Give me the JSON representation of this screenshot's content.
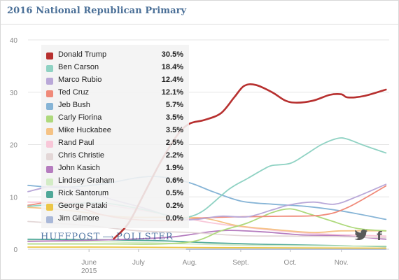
{
  "title": "2016 National Republican Primary",
  "brand": {
    "left": "HUFFPOST",
    "right": "POLLSTER",
    "sep_icon": "arrow-icon"
  },
  "share": {
    "twitter_icon": "twitter-bird-icon",
    "facebook_icon": "facebook-f-icon"
  },
  "chart_data": {
    "type": "line",
    "title": "2016 National Republican Primary",
    "xlabel": "",
    "ylabel": "",
    "ylim": [
      0,
      40
    ],
    "xlim": [
      "2015-04-25",
      "2015-11-30"
    ],
    "y_ticks": [
      "0",
      "10",
      "20",
      "30",
      "40"
    ],
    "x_ticks": [
      {
        "date": "2015-06-01",
        "label": "June",
        "sub": "2015"
      },
      {
        "date": "2015-07-01",
        "label": "July",
        "sub": ""
      },
      {
        "date": "2015-08-01",
        "label": "Aug.",
        "sub": ""
      },
      {
        "date": "2015-09-01",
        "label": "Sept.",
        "sub": ""
      },
      {
        "date": "2015-10-01",
        "label": "Oct.",
        "sub": ""
      },
      {
        "date": "2015-11-01",
        "label": "Nov.",
        "sub": ""
      }
    ],
    "grid": "horizontal",
    "legend_position": "top-left",
    "series": [
      {
        "name": "Donald Trump",
        "value_label": "30.5%",
        "color": "#b7302f",
        "points": [
          [
            "2015-06-16",
            2
          ],
          [
            "2015-06-25",
            5
          ],
          [
            "2015-07-05",
            11
          ],
          [
            "2015-07-15",
            17
          ],
          [
            "2015-07-25",
            22
          ],
          [
            "2015-08-01",
            24
          ],
          [
            "2015-08-10",
            24.7
          ],
          [
            "2015-08-20",
            26
          ],
          [
            "2015-08-28",
            29
          ],
          [
            "2015-09-03",
            31.2
          ],
          [
            "2015-09-10",
            31.4
          ],
          [
            "2015-09-20",
            30
          ],
          [
            "2015-09-28",
            28.4
          ],
          [
            "2015-10-05",
            28
          ],
          [
            "2015-10-15",
            28.4
          ],
          [
            "2015-10-25",
            29.5
          ],
          [
            "2015-11-01",
            29.6
          ],
          [
            "2015-11-05",
            29
          ],
          [
            "2015-11-15",
            29.3
          ],
          [
            "2015-11-28",
            30.5
          ]
        ]
      },
      {
        "name": "Ben Carson",
        "value_label": "18.4%",
        "color": "#8fd2c3",
        "points": [
          [
            "2015-04-25",
            8.2
          ],
          [
            "2015-05-15",
            8.6
          ],
          [
            "2015-06-10",
            8.8
          ],
          [
            "2015-07-05",
            7.5
          ],
          [
            "2015-07-25",
            6
          ],
          [
            "2015-08-01",
            6.2
          ],
          [
            "2015-08-10",
            7.5
          ],
          [
            "2015-08-25",
            11.5
          ],
          [
            "2015-09-05",
            13.5
          ],
          [
            "2015-09-15",
            15.3
          ],
          [
            "2015-09-20",
            16
          ],
          [
            "2015-10-01",
            16.4
          ],
          [
            "2015-10-10",
            18
          ],
          [
            "2015-10-20",
            20
          ],
          [
            "2015-10-30",
            21.2
          ],
          [
            "2015-11-05",
            21
          ],
          [
            "2015-11-15",
            19.8
          ],
          [
            "2015-11-28",
            18.4
          ]
        ]
      },
      {
        "name": "Marco Rubio",
        "value_label": "12.4%",
        "color": "#b9a8d8",
        "points": [
          [
            "2015-04-25",
            11
          ],
          [
            "2015-05-10",
            12
          ],
          [
            "2015-05-25",
            11.5
          ],
          [
            "2015-06-15",
            9.5
          ],
          [
            "2015-07-05",
            7.8
          ],
          [
            "2015-07-25",
            5.8
          ],
          [
            "2015-08-05",
            5.7
          ],
          [
            "2015-08-20",
            6.3
          ],
          [
            "2015-09-05",
            6.2
          ],
          [
            "2015-09-20",
            7.5
          ],
          [
            "2015-10-01",
            8.5
          ],
          [
            "2015-10-15",
            9
          ],
          [
            "2015-10-28",
            8.6
          ],
          [
            "2015-11-10",
            10
          ],
          [
            "2015-11-28",
            12.4
          ]
        ]
      },
      {
        "name": "Ted Cruz",
        "value_label": "12.1%",
        "color": "#f08a79",
        "points": [
          [
            "2015-04-25",
            8.4
          ],
          [
            "2015-05-15",
            8.9
          ],
          [
            "2015-06-10",
            6.5
          ],
          [
            "2015-07-01",
            5.6
          ],
          [
            "2015-07-25",
            5.5
          ],
          [
            "2015-08-10",
            6
          ],
          [
            "2015-09-01",
            6.2
          ],
          [
            "2015-09-25",
            6.3
          ],
          [
            "2015-10-20",
            6.5
          ],
          [
            "2015-11-05",
            8
          ],
          [
            "2015-11-28",
            12.1
          ]
        ]
      },
      {
        "name": "Jeb Bush",
        "value_label": "5.7%",
        "color": "#86b4d6",
        "points": [
          [
            "2015-04-25",
            12.2
          ],
          [
            "2015-05-15",
            11.8
          ],
          [
            "2015-06-10",
            12.5
          ],
          [
            "2015-07-01",
            13.7
          ],
          [
            "2015-07-15",
            13.8
          ],
          [
            "2015-08-01",
            12.7
          ],
          [
            "2015-08-15",
            11
          ],
          [
            "2015-09-01",
            9.2
          ],
          [
            "2015-09-20",
            8.6
          ],
          [
            "2015-10-10",
            8.2
          ],
          [
            "2015-11-01",
            7.3
          ],
          [
            "2015-11-28",
            5.7
          ]
        ]
      },
      {
        "name": "Carly Fiorina",
        "value_label": "3.5%",
        "color": "#aed97c",
        "points": [
          [
            "2015-04-25",
            1
          ],
          [
            "2015-06-15",
            1
          ],
          [
            "2015-07-15",
            1
          ],
          [
            "2015-08-05",
            1.6
          ],
          [
            "2015-08-20",
            3.5
          ],
          [
            "2015-09-05",
            5
          ],
          [
            "2015-09-20",
            7
          ],
          [
            "2015-10-01",
            7.7
          ],
          [
            "2015-10-12",
            6.8
          ],
          [
            "2015-10-25",
            5.5
          ],
          [
            "2015-11-10",
            4
          ],
          [
            "2015-11-28",
            3.5
          ]
        ]
      },
      {
        "name": "Mike Huckabee",
        "value_label": "3.5%",
        "color": "#f5c284",
        "points": [
          [
            "2015-04-25",
            8
          ],
          [
            "2015-05-20",
            7.4
          ],
          [
            "2015-06-20",
            6.2
          ],
          [
            "2015-07-20",
            6.1
          ],
          [
            "2015-08-10",
            5.9
          ],
          [
            "2015-08-30",
            4.5
          ],
          [
            "2015-09-20",
            3.8
          ],
          [
            "2015-10-15",
            3.2
          ],
          [
            "2015-11-01",
            3.5
          ],
          [
            "2015-11-28",
            3.5
          ]
        ]
      },
      {
        "name": "Rand Paul",
        "value_label": "2.5%",
        "color": "#f8c7d8",
        "points": [
          [
            "2015-04-25",
            9
          ],
          [
            "2015-06-01",
            8.8
          ],
          [
            "2015-07-01",
            7.5
          ],
          [
            "2015-07-25",
            6.2
          ],
          [
            "2015-08-15",
            5
          ],
          [
            "2015-09-15",
            3.8
          ],
          [
            "2015-10-15",
            3
          ],
          [
            "2015-11-28",
            2.5
          ]
        ]
      },
      {
        "name": "Chris Christie",
        "value_label": "2.2%",
        "color": "#e3d7d7",
        "points": [
          [
            "2015-04-25",
            5.3
          ],
          [
            "2015-06-01",
            4.5
          ],
          [
            "2015-07-01",
            3.5
          ],
          [
            "2015-08-01",
            3.2
          ],
          [
            "2015-09-01",
            2.6
          ],
          [
            "2015-10-01",
            2.5
          ],
          [
            "2015-11-01",
            2.4
          ],
          [
            "2015-11-28",
            2.2
          ]
        ]
      },
      {
        "name": "John Kasich",
        "value_label": "1.9%",
        "color": "#b57cbf",
        "points": [
          [
            "2015-04-25",
            1.5
          ],
          [
            "2015-06-15",
            1.8
          ],
          [
            "2015-07-20",
            2.3
          ],
          [
            "2015-08-10",
            3.2
          ],
          [
            "2015-08-25",
            3.6
          ],
          [
            "2015-09-15",
            3.3
          ],
          [
            "2015-10-10",
            2.7
          ],
          [
            "2015-11-01",
            2.6
          ],
          [
            "2015-11-28",
            1.9
          ]
        ]
      },
      {
        "name": "Lindsey Graham",
        "value_label": "0.6%",
        "color": "#d3ecc6",
        "points": [
          [
            "2015-04-25",
            1.6
          ],
          [
            "2015-06-15",
            1.4
          ],
          [
            "2015-08-01",
            1
          ],
          [
            "2015-09-15",
            0.7
          ],
          [
            "2015-11-28",
            0.6
          ]
        ]
      },
      {
        "name": "Rick Santorum",
        "value_label": "0.5%",
        "color": "#4fa898",
        "points": [
          [
            "2015-04-25",
            1.9
          ],
          [
            "2015-06-10",
            1.8
          ],
          [
            "2015-07-15",
            1.6
          ],
          [
            "2015-08-15",
            1.2
          ],
          [
            "2015-09-20",
            0.9
          ],
          [
            "2015-10-25",
            0.7
          ],
          [
            "2015-11-28",
            0.5
          ]
        ]
      },
      {
        "name": "George Pataki",
        "value_label": "0.2%",
        "color": "#ecc646",
        "points": [
          [
            "2015-04-25",
            0.4
          ],
          [
            "2015-06-15",
            0.4
          ],
          [
            "2015-08-15",
            0.3
          ],
          [
            "2015-11-28",
            0.2
          ]
        ]
      },
      {
        "name": "Jim Gilmore",
        "value_label": "0.0%",
        "color": "#a9b8d8",
        "points": [
          [
            "2015-07-30",
            0
          ],
          [
            "2015-11-28",
            0
          ]
        ]
      }
    ]
  }
}
